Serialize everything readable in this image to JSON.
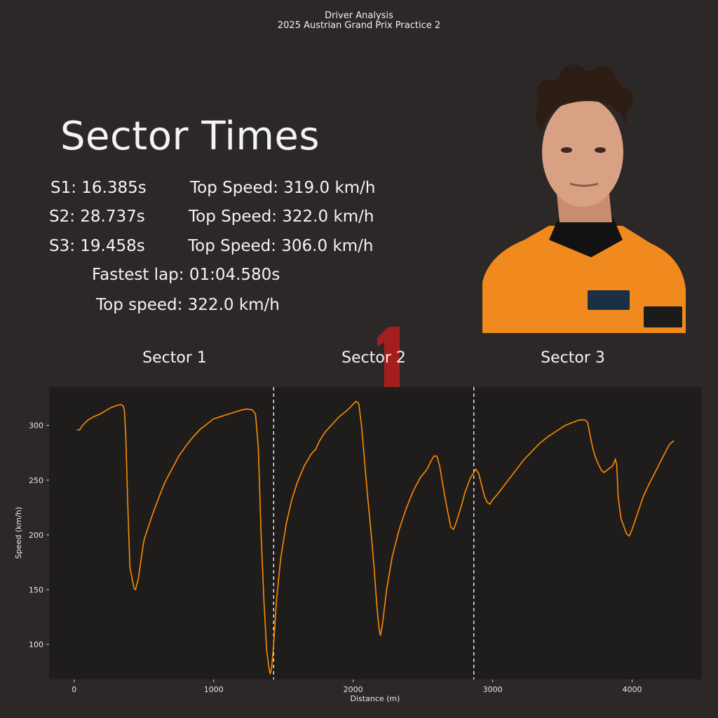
{
  "header": {
    "line1": "Driver Analysis",
    "line2": "2025 Austrian Grand Prix Practice 2"
  },
  "stats": {
    "title": "Sector Times",
    "s1": "S1: 16.385s",
    "s1_speed": "Top Speed: 319.0 km/h",
    "s2": "S2: 28.737s",
    "s2_speed": "Top Speed: 322.0 km/h",
    "s3": "S3: 19.458s",
    "s3_speed": "Top Speed: 306.0 km/h",
    "fastest_lap": "Fastest lap: 01:04.580s",
    "top_speed": "Top speed: 322.0 km/h"
  },
  "sectors": [
    "Sector 1",
    "Sector 2",
    "Sector 3"
  ],
  "colors": {
    "background": "#2b2827",
    "plot_background": "#1f1d1c",
    "line": "#ff8a00",
    "team_accent": "#ff8000",
    "logo_red": "#a51e1e"
  },
  "chart_data": {
    "type": "line",
    "title": "",
    "xlabel": "Distance (m)",
    "ylabel": "Speed (km/h)",
    "xlim": [
      -180,
      4500
    ],
    "ylim": [
      68,
      335
    ],
    "xticks": [
      0,
      1000,
      2000,
      3000,
      4000
    ],
    "yticks": [
      100,
      150,
      200,
      250,
      300
    ],
    "sector_boundaries": [
      1430,
      2865
    ],
    "series": [
      {
        "values": [
          [
            20,
            296
          ],
          [
            40,
            296
          ],
          [
            60,
            300
          ],
          [
            100,
            305
          ],
          [
            140,
            308
          ],
          [
            180,
            310
          ],
          [
            220,
            313
          ],
          [
            260,
            316
          ],
          [
            300,
            318
          ],
          [
            330,
            319
          ],
          [
            350,
            318
          ],
          [
            360,
            314
          ],
          [
            370,
            290
          ],
          [
            380,
            245
          ],
          [
            390,
            205
          ],
          [
            400,
            170
          ],
          [
            415,
            160
          ],
          [
            430,
            151
          ],
          [
            440,
            150
          ],
          [
            460,
            160
          ],
          [
            480,
            178
          ],
          [
            500,
            195
          ],
          [
            520,
            203
          ],
          [
            560,
            218
          ],
          [
            600,
            232
          ],
          [
            650,
            248
          ],
          [
            700,
            260
          ],
          [
            750,
            272
          ],
          [
            800,
            281
          ],
          [
            850,
            289
          ],
          [
            900,
            296
          ],
          [
            950,
            301
          ],
          [
            1000,
            306
          ],
          [
            1050,
            308
          ],
          [
            1100,
            310
          ],
          [
            1150,
            312
          ],
          [
            1200,
            314
          ],
          [
            1240,
            315
          ],
          [
            1280,
            314
          ],
          [
            1300,
            310
          ],
          [
            1320,
            280
          ],
          [
            1340,
            200
          ],
          [
            1360,
            140
          ],
          [
            1380,
            95
          ],
          [
            1395,
            80
          ],
          [
            1405,
            73
          ],
          [
            1415,
            78
          ],
          [
            1430,
            100
          ],
          [
            1450,
            140
          ],
          [
            1480,
            178
          ],
          [
            1520,
            210
          ],
          [
            1560,
            232
          ],
          [
            1600,
            248
          ],
          [
            1650,
            263
          ],
          [
            1700,
            274
          ],
          [
            1730,
            278
          ],
          [
            1760,
            286
          ],
          [
            1800,
            294
          ],
          [
            1850,
            301
          ],
          [
            1900,
            308
          ],
          [
            1950,
            313
          ],
          [
            1990,
            318
          ],
          [
            2020,
            322
          ],
          [
            2040,
            320
          ],
          [
            2060,
            300
          ],
          [
            2080,
            270
          ],
          [
            2100,
            240
          ],
          [
            2130,
            200
          ],
          [
            2150,
            170
          ],
          [
            2170,
            135
          ],
          [
            2185,
            115
          ],
          [
            2195,
            108
          ],
          [
            2210,
            118
          ],
          [
            2240,
            150
          ],
          [
            2280,
            180
          ],
          [
            2330,
            205
          ],
          [
            2380,
            224
          ],
          [
            2430,
            240
          ],
          [
            2480,
            252
          ],
          [
            2530,
            260
          ],
          [
            2560,
            268
          ],
          [
            2580,
            272
          ],
          [
            2600,
            272
          ],
          [
            2620,
            263
          ],
          [
            2640,
            248
          ],
          [
            2660,
            233
          ],
          [
            2680,
            220
          ],
          [
            2700,
            207
          ],
          [
            2720,
            205
          ],
          [
            2740,
            212
          ],
          [
            2760,
            220
          ],
          [
            2780,
            228
          ],
          [
            2800,
            238
          ],
          [
            2820,
            245
          ],
          [
            2840,
            252
          ],
          [
            2860,
            256
          ],
          [
            2880,
            260
          ],
          [
            2900,
            256
          ],
          [
            2920,
            246
          ],
          [
            2940,
            236
          ],
          [
            2960,
            230
          ],
          [
            2980,
            228
          ],
          [
            3000,
            232
          ],
          [
            3040,
            238
          ],
          [
            3100,
            248
          ],
          [
            3160,
            258
          ],
          [
            3220,
            268
          ],
          [
            3280,
            276
          ],
          [
            3340,
            284
          ],
          [
            3400,
            290
          ],
          [
            3460,
            295
          ],
          [
            3520,
            300
          ],
          [
            3580,
            303
          ],
          [
            3620,
            305
          ],
          [
            3660,
            305
          ],
          [
            3680,
            303
          ],
          [
            3700,
            290
          ],
          [
            3720,
            278
          ],
          [
            3740,
            270
          ],
          [
            3760,
            264
          ],
          [
            3780,
            259
          ],
          [
            3800,
            257
          ],
          [
            3830,
            260
          ],
          [
            3860,
            263
          ],
          [
            3880,
            269
          ],
          [
            3890,
            263
          ],
          [
            3900,
            235
          ],
          [
            3920,
            215
          ],
          [
            3940,
            208
          ],
          [
            3960,
            201
          ],
          [
            3980,
            199
          ],
          [
            4000,
            205
          ],
          [
            4040,
            220
          ],
          [
            4080,
            235
          ],
          [
            4120,
            246
          ],
          [
            4160,
            256
          ],
          [
            4200,
            266
          ],
          [
            4240,
            276
          ],
          [
            4270,
            283
          ],
          [
            4300,
            286
          ]
        ]
      }
    ]
  }
}
